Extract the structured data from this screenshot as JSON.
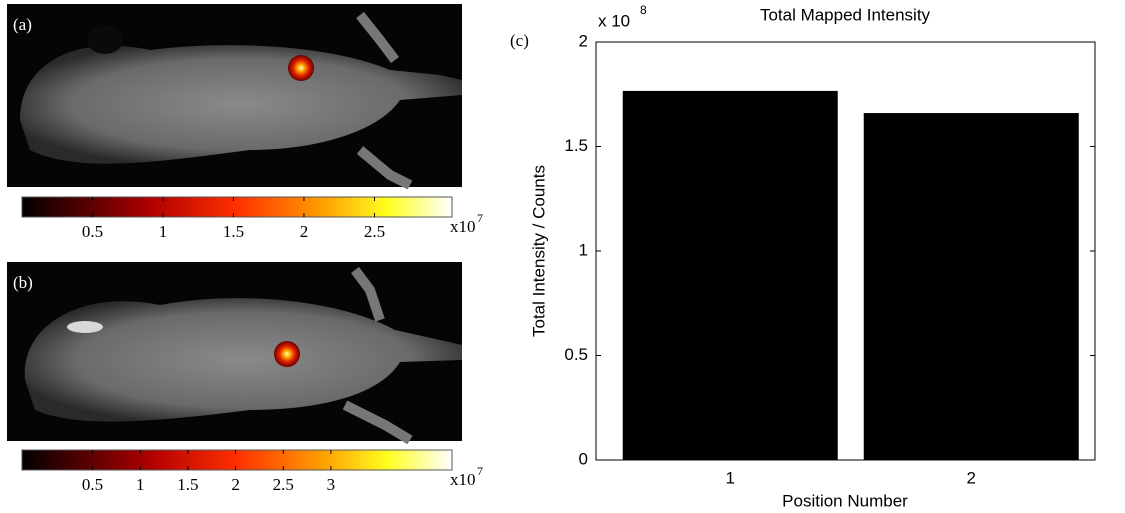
{
  "panels": [
    {
      "label": "(a)",
      "colorbar": {
        "lim": [
          0,
          3.05
        ],
        "ticks": [
          0.5,
          1,
          1.5,
          2,
          2.5
        ],
        "multiplier": "x10",
        "exponent": "7"
      }
    },
    {
      "label": "(b)",
      "colorbar": {
        "lim": [
          -0.24,
          4.27
        ],
        "ticks": [
          0.5,
          1,
          1.5,
          2,
          2.5,
          3
        ],
        "multiplier": "x10",
        "exponent": "7"
      }
    }
  ],
  "chart_data": {
    "type": "bar",
    "panel_label": "(c)",
    "title": "Total Mapped Intensity",
    "x_label": "Position Number",
    "y_label": "Total Intensity / Counts",
    "y_multiplier": "x 10",
    "y_exponent": "8",
    "categories": [
      "1",
      "2"
    ],
    "values": [
      1.766,
      1.66
    ],
    "color": "#000000",
    "ylim": [
      0,
      2
    ],
    "yticks": [
      0,
      0.5,
      1,
      1.5,
      2
    ]
  }
}
